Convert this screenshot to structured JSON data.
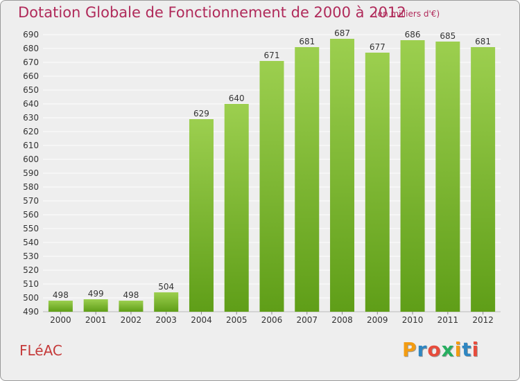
{
  "title": "Dotation Globale de Fonctionnement de 2000 à 2012",
  "unit_note": "(en milliers d'€)",
  "commune": "FLéAC",
  "logo": {
    "letters": [
      "P",
      "r",
      "o",
      "x",
      "i",
      "t",
      "i"
    ],
    "colors": [
      "#f39c12",
      "#2e86c1",
      "#e74c3c",
      "#27ae60",
      "#f39c12",
      "#2e86c1",
      "#e74c3c"
    ]
  },
  "colors": {
    "bar_top": "#9ccf4f",
    "bar_bottom": "#5f9e18",
    "title": "#b02a5a",
    "grid": "#ffffff"
  },
  "chart_data": {
    "type": "bar",
    "categories": [
      "2000",
      "2001",
      "2002",
      "2003",
      "2004",
      "2005",
      "2006",
      "2007",
      "2008",
      "2009",
      "2010",
      "2011",
      "2012"
    ],
    "values": [
      498,
      499,
      498,
      504,
      629,
      640,
      671,
      681,
      687,
      677,
      686,
      685,
      681
    ],
    "title": "Dotation Globale de Fonctionnement de 2000 à 2012",
    "ylim": [
      490,
      690
    ],
    "yticks": [
      490,
      500,
      510,
      520,
      530,
      540,
      550,
      560,
      570,
      580,
      590,
      600,
      610,
      620,
      630,
      640,
      650,
      660,
      670,
      680,
      690
    ],
    "grid": true,
    "data_labels": true
  }
}
